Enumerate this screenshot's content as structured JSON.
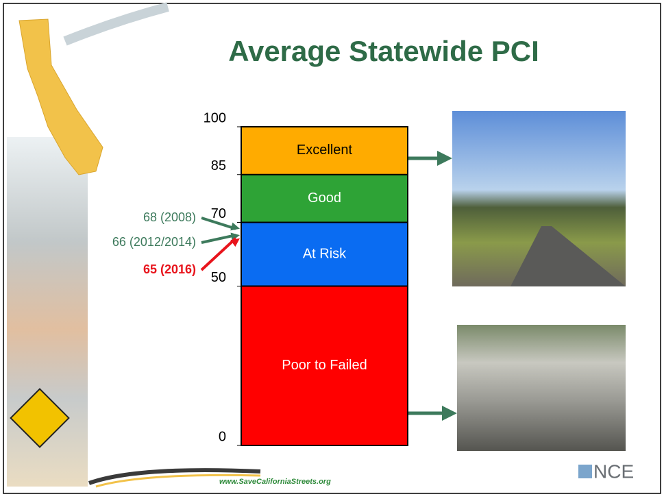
{
  "chart_data": {
    "type": "bar",
    "stacked": true,
    "title": "Average Statewide PCI",
    "categories": [
      null
    ],
    "series": [
      {
        "name": "Poor to Failed",
        "color": "#ff0000",
        "label_color": "#ffffff",
        "values": [
          50
        ]
      },
      {
        "name": "At Risk",
        "color": "#0a6cf2",
        "label_color": "#ffffff",
        "values": [
          20
        ]
      },
      {
        "name": "Good",
        "color": "#2ea336",
        "label_color": "#ffffff",
        "values": [
          15
        ]
      },
      {
        "name": "Excellent",
        "color": "#ffab00",
        "label_color": "#000000",
        "values": [
          15
        ]
      }
    ],
    "ylim": [
      0,
      100
    ],
    "yticks": [
      0,
      50,
      70,
      85,
      100
    ],
    "annotations": [
      {
        "value": 68,
        "label": "68 (2008)",
        "color": "#3d7a5c",
        "bold": false
      },
      {
        "value": 66,
        "label": "66 (2012/2014)",
        "color": "#3d7a5c",
        "bold": false
      },
      {
        "value": 65,
        "label": "65 (2016)",
        "color": "#e8141c",
        "bold": true
      }
    ],
    "website": "www.SaveCaliforniaStreets.org",
    "logo": "NCE"
  }
}
